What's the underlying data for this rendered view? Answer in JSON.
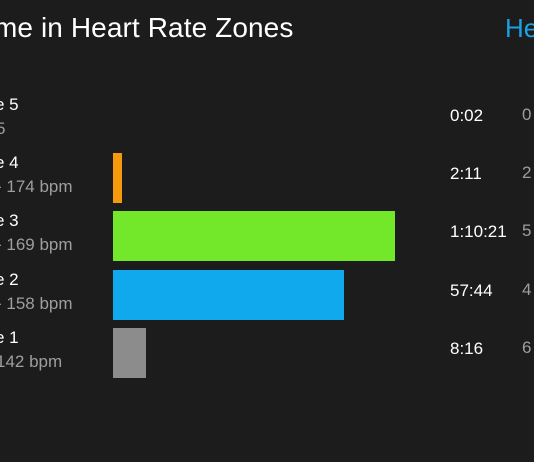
{
  "header": {
    "title": "me in Heart Rate Zones",
    "help_label": "He"
  },
  "zones": [
    {
      "name": "e 5",
      "range": "5",
      "time": "0:02",
      "percent": "0",
      "fraction": 0.0,
      "color": ""
    },
    {
      "name": "e 4",
      "range": "- 174 bpm",
      "time": "2:11",
      "percent": "2",
      "fraction": 0.03,
      "color": "#f59a0c"
    },
    {
      "name": "e 3",
      "range": "- 169 bpm",
      "time": "1:10:21",
      "percent": "5",
      "fraction": 0.94,
      "color": "#73e82a"
    },
    {
      "name": "e 2",
      "range": "- 158 bpm",
      "time": "57:44",
      "percent": "4",
      "fraction": 0.77,
      "color": "#11a9ee"
    },
    {
      "name": "e 1",
      "range": "142 bpm",
      "time": "8:16",
      "percent": "6",
      "fraction": 0.11,
      "color": "#8c8c8c"
    }
  ]
}
